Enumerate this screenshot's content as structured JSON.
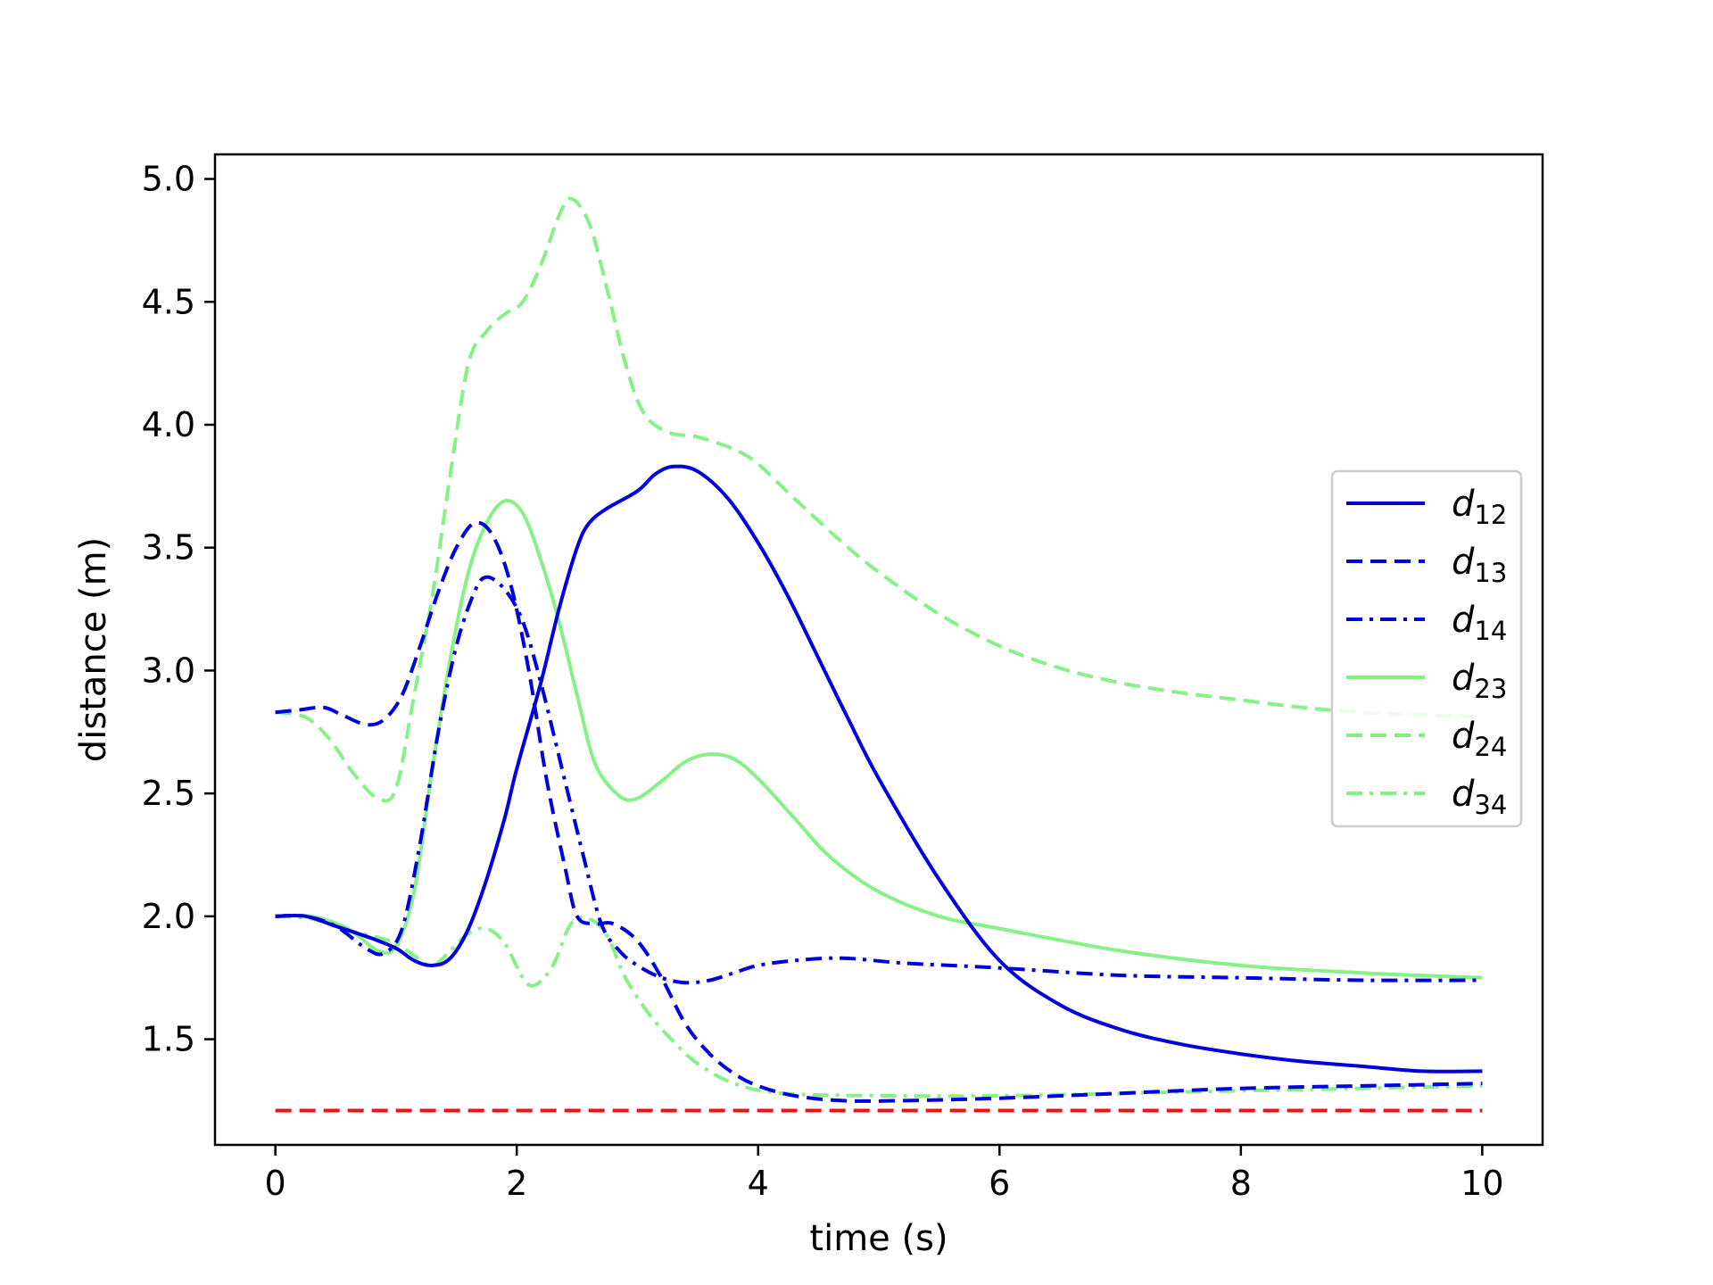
{
  "chart_data": {
    "type": "line",
    "xlabel": "time (s)",
    "ylabel": "distance (m)",
    "xlim": [
      -0.5,
      10.5
    ],
    "ylim": [
      1.07,
      5.1
    ],
    "xticks": [
      0,
      2,
      4,
      6,
      8,
      10
    ],
    "yticks": [
      1.5,
      2.0,
      2.5,
      3.0,
      3.5,
      4.0,
      4.5,
      5.0
    ],
    "xtick_labels": [
      "0",
      "2",
      "4",
      "6",
      "8",
      "10"
    ],
    "ytick_labels": [
      "1.5",
      "2.0",
      "2.5",
      "3.0",
      "3.5",
      "4.0",
      "4.5",
      "5.0"
    ],
    "grid": false,
    "legend_position": "center-right",
    "series": [
      {
        "name": "d",
        "subscript": "12",
        "color": "#0000dd",
        "style": "solid",
        "points": [
          [
            0,
            2.0
          ],
          [
            0.25,
            2.0
          ],
          [
            0.5,
            1.96
          ],
          [
            0.8,
            1.91
          ],
          [
            1.0,
            1.87
          ],
          [
            1.15,
            1.82
          ],
          [
            1.3,
            1.8
          ],
          [
            1.45,
            1.83
          ],
          [
            1.6,
            1.95
          ],
          [
            1.75,
            2.15
          ],
          [
            1.9,
            2.4
          ],
          [
            2.0,
            2.6
          ],
          [
            2.2,
            2.95
          ],
          [
            2.35,
            3.25
          ],
          [
            2.5,
            3.5
          ],
          [
            2.6,
            3.6
          ],
          [
            2.75,
            3.66
          ],
          [
            3.0,
            3.73
          ],
          [
            3.15,
            3.8
          ],
          [
            3.3,
            3.83
          ],
          [
            3.5,
            3.81
          ],
          [
            3.75,
            3.7
          ],
          [
            4.0,
            3.52
          ],
          [
            4.25,
            3.3
          ],
          [
            4.5,
            3.05
          ],
          [
            4.75,
            2.8
          ],
          [
            5.0,
            2.56
          ],
          [
            5.5,
            2.15
          ],
          [
            6.0,
            1.82
          ],
          [
            6.5,
            1.64
          ],
          [
            7.0,
            1.54
          ],
          [
            7.5,
            1.48
          ],
          [
            8.0,
            1.44
          ],
          [
            8.5,
            1.41
          ],
          [
            9.0,
            1.39
          ],
          [
            9.5,
            1.37
          ],
          [
            10.0,
            1.37
          ]
        ]
      },
      {
        "name": "d",
        "subscript": "13",
        "color": "#0000dd",
        "style": "dashed",
        "points": [
          [
            0,
            2.83
          ],
          [
            0.2,
            2.84
          ],
          [
            0.4,
            2.85
          ],
          [
            0.55,
            2.82
          ],
          [
            0.75,
            2.78
          ],
          [
            0.9,
            2.8
          ],
          [
            1.05,
            2.9
          ],
          [
            1.2,
            3.1
          ],
          [
            1.35,
            3.32
          ],
          [
            1.5,
            3.5
          ],
          [
            1.65,
            3.6
          ],
          [
            1.8,
            3.55
          ],
          [
            1.95,
            3.35
          ],
          [
            2.1,
            3.0
          ],
          [
            2.25,
            2.55
          ],
          [
            2.4,
            2.2
          ],
          [
            2.5,
            2.0
          ],
          [
            2.65,
            1.97
          ],
          [
            2.8,
            1.97
          ],
          [
            3.0,
            1.9
          ],
          [
            3.2,
            1.75
          ],
          [
            3.4,
            1.56
          ],
          [
            3.6,
            1.44
          ],
          [
            3.8,
            1.36
          ],
          [
            4.0,
            1.31
          ],
          [
            4.3,
            1.27
          ],
          [
            4.7,
            1.25
          ],
          [
            5.2,
            1.25
          ],
          [
            6.0,
            1.26
          ],
          [
            7.0,
            1.28
          ],
          [
            8.0,
            1.3
          ],
          [
            9.0,
            1.31
          ],
          [
            10.0,
            1.32
          ]
        ]
      },
      {
        "name": "d",
        "subscript": "14",
        "color": "#0000dd",
        "style": "dashdot",
        "points": [
          [
            0,
            2.0
          ],
          [
            0.25,
            2.0
          ],
          [
            0.5,
            1.96
          ],
          [
            0.75,
            1.87
          ],
          [
            0.9,
            1.85
          ],
          [
            1.05,
            1.95
          ],
          [
            1.2,
            2.3
          ],
          [
            1.35,
            2.75
          ],
          [
            1.5,
            3.1
          ],
          [
            1.65,
            3.32
          ],
          [
            1.75,
            3.38
          ],
          [
            1.9,
            3.33
          ],
          [
            2.05,
            3.2
          ],
          [
            2.2,
            2.95
          ],
          [
            2.4,
            2.55
          ],
          [
            2.55,
            2.25
          ],
          [
            2.7,
            1.97
          ],
          [
            2.85,
            1.86
          ],
          [
            3.0,
            1.8
          ],
          [
            3.2,
            1.75
          ],
          [
            3.4,
            1.73
          ],
          [
            3.6,
            1.74
          ],
          [
            3.8,
            1.77
          ],
          [
            4.0,
            1.8
          ],
          [
            4.3,
            1.82
          ],
          [
            4.7,
            1.83
          ],
          [
            5.2,
            1.81
          ],
          [
            6.0,
            1.79
          ],
          [
            7.0,
            1.76
          ],
          [
            8.0,
            1.75
          ],
          [
            9.0,
            1.74
          ],
          [
            10.0,
            1.74
          ]
        ]
      },
      {
        "name": "d",
        "subscript": "23",
        "color": "#80f080",
        "style": "solid",
        "points": [
          [
            0,
            2.0
          ],
          [
            0.3,
            2.0
          ],
          [
            0.6,
            1.95
          ],
          [
            0.85,
            1.86
          ],
          [
            1.0,
            1.88
          ],
          [
            1.15,
            2.1
          ],
          [
            1.3,
            2.6
          ],
          [
            1.45,
            3.05
          ],
          [
            1.6,
            3.4
          ],
          [
            1.75,
            3.6
          ],
          [
            1.9,
            3.69
          ],
          [
            2.05,
            3.64
          ],
          [
            2.2,
            3.45
          ],
          [
            2.35,
            3.2
          ],
          [
            2.5,
            2.9
          ],
          [
            2.65,
            2.62
          ],
          [
            2.85,
            2.49
          ],
          [
            3.0,
            2.48
          ],
          [
            3.2,
            2.55
          ],
          [
            3.4,
            2.63
          ],
          [
            3.6,
            2.66
          ],
          [
            3.8,
            2.64
          ],
          [
            4.0,
            2.56
          ],
          [
            4.3,
            2.4
          ],
          [
            4.6,
            2.24
          ],
          [
            5.0,
            2.1
          ],
          [
            5.5,
            2.0
          ],
          [
            6.0,
            1.95
          ],
          [
            7.0,
            1.86
          ],
          [
            8.0,
            1.8
          ],
          [
            9.0,
            1.77
          ],
          [
            10.0,
            1.75
          ]
        ]
      },
      {
        "name": "d",
        "subscript": "24",
        "color": "#80f080",
        "style": "dashed",
        "points": [
          [
            0,
            2.83
          ],
          [
            0.25,
            2.81
          ],
          [
            0.45,
            2.72
          ],
          [
            0.65,
            2.58
          ],
          [
            0.85,
            2.48
          ],
          [
            1.0,
            2.52
          ],
          [
            1.15,
            2.9
          ],
          [
            1.3,
            3.3
          ],
          [
            1.45,
            3.8
          ],
          [
            1.6,
            4.25
          ],
          [
            1.75,
            4.38
          ],
          [
            1.9,
            4.45
          ],
          [
            2.05,
            4.5
          ],
          [
            2.2,
            4.65
          ],
          [
            2.35,
            4.85
          ],
          [
            2.45,
            4.92
          ],
          [
            2.6,
            4.82
          ],
          [
            2.75,
            4.55
          ],
          [
            2.9,
            4.25
          ],
          [
            3.05,
            4.05
          ],
          [
            3.25,
            3.97
          ],
          [
            3.5,
            3.95
          ],
          [
            3.8,
            3.9
          ],
          [
            4.0,
            3.84
          ],
          [
            4.3,
            3.7
          ],
          [
            4.7,
            3.52
          ],
          [
            5.0,
            3.4
          ],
          [
            5.5,
            3.23
          ],
          [
            6.0,
            3.1
          ],
          [
            6.5,
            3.01
          ],
          [
            7.0,
            2.95
          ],
          [
            7.5,
            2.91
          ],
          [
            8.0,
            2.88
          ],
          [
            8.5,
            2.85
          ],
          [
            9.0,
            2.83
          ],
          [
            9.5,
            2.82
          ],
          [
            10.0,
            2.81
          ]
        ]
      },
      {
        "name": "d",
        "subscript": "34",
        "color": "#80f080",
        "style": "dashdot",
        "points": [
          [
            0,
            2.0
          ],
          [
            0.3,
            1.99
          ],
          [
            0.55,
            1.95
          ],
          [
            0.8,
            1.92
          ],
          [
            1.0,
            1.89
          ],
          [
            1.15,
            1.84
          ],
          [
            1.3,
            1.8
          ],
          [
            1.45,
            1.86
          ],
          [
            1.6,
            1.93
          ],
          [
            1.75,
            1.95
          ],
          [
            1.9,
            1.89
          ],
          [
            2.05,
            1.75
          ],
          [
            2.15,
            1.72
          ],
          [
            2.3,
            1.8
          ],
          [
            2.45,
            1.97
          ],
          [
            2.6,
            1.99
          ],
          [
            2.75,
            1.92
          ],
          [
            2.9,
            1.75
          ],
          [
            3.1,
            1.6
          ],
          [
            3.3,
            1.49
          ],
          [
            3.5,
            1.4
          ],
          [
            3.8,
            1.32
          ],
          [
            4.2,
            1.28
          ],
          [
            5.0,
            1.27
          ],
          [
            6.0,
            1.27
          ],
          [
            7.0,
            1.28
          ],
          [
            8.0,
            1.29
          ],
          [
            9.0,
            1.3
          ],
          [
            10.0,
            1.31
          ]
        ]
      },
      {
        "name": "",
        "color": "#ee1111",
        "style": "dashed",
        "points": [
          [
            0,
            1.21
          ],
          [
            10.0,
            1.21
          ]
        ]
      }
    ]
  }
}
